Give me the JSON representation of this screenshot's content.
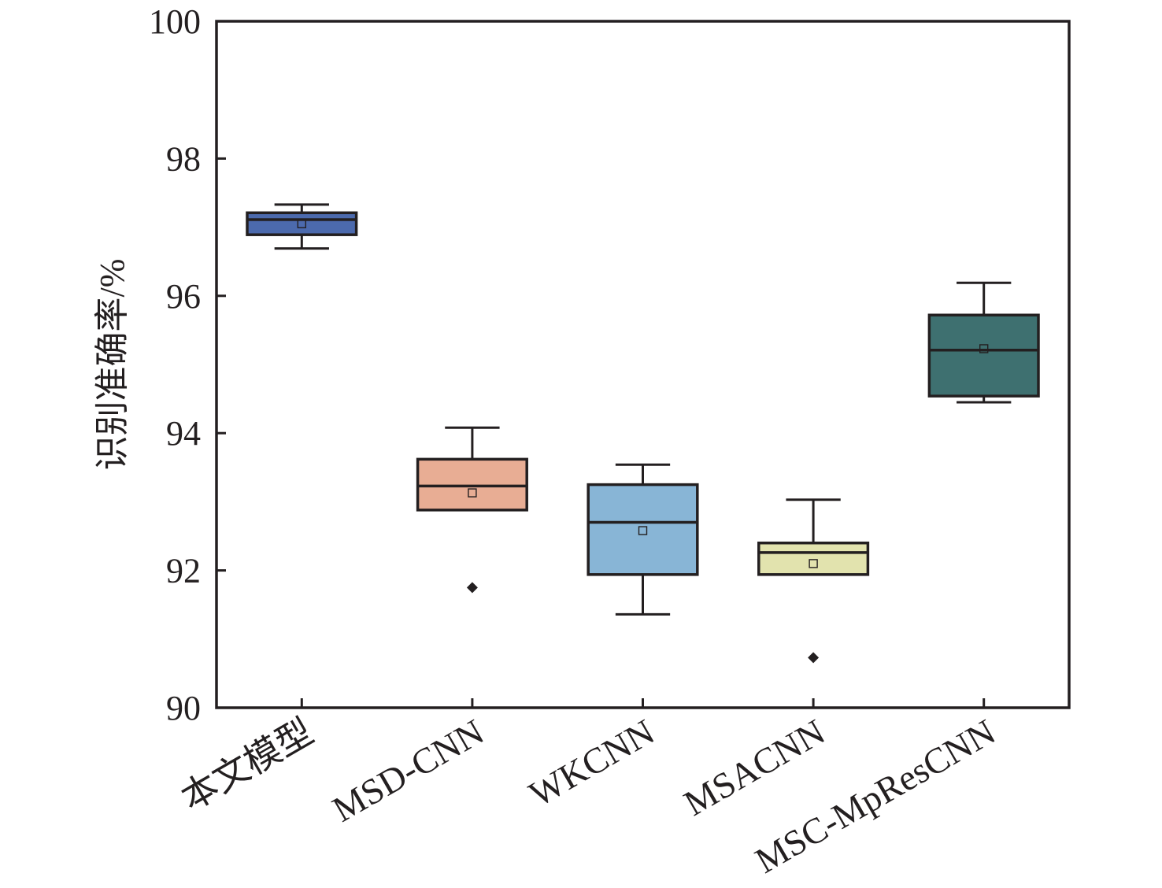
{
  "chart_data": {
    "type": "box",
    "title": "",
    "xlabel": "",
    "ylabel": "识别准确率/%",
    "ylim": [
      90,
      100
    ],
    "yticks": [
      90,
      92,
      94,
      96,
      98,
      100
    ],
    "ytick_labels": [
      "90",
      "92",
      "94",
      "96",
      "98",
      "100"
    ],
    "grid": false,
    "legend": "none",
    "categories": [
      "本文模型",
      "MSD-CNN",
      "WKCNN",
      "MSACNN",
      "MSC-MpResCNN"
    ],
    "series": [
      {
        "name": "本文模型",
        "color": "#4c6aad",
        "whisker_low": 96.69,
        "q1": 96.89,
        "median": 97.11,
        "q3": 97.21,
        "whisker_high": 97.33,
        "mean": 97.05,
        "outliers": []
      },
      {
        "name": "MSD-CNN",
        "color": "#e8ad94",
        "whisker_low": 92.88,
        "q1": 92.88,
        "median": 93.23,
        "q3": 93.62,
        "whisker_high": 94.08,
        "mean": 93.13,
        "outliers": [
          91.75
        ]
      },
      {
        "name": "WKCNN",
        "color": "#88b5d6",
        "whisker_low": 91.36,
        "q1": 91.94,
        "median": 92.7,
        "q3": 93.25,
        "whisker_high": 93.54,
        "mean": 92.58,
        "outliers": []
      },
      {
        "name": "MSACNN",
        "color": "#e2e3ae",
        "whisker_low": 91.94,
        "q1": 91.94,
        "median": 92.26,
        "q3": 92.4,
        "whisker_high": 93.03,
        "mean": 92.1,
        "outliers": [
          90.73
        ]
      },
      {
        "name": "MSC-MpResCNN",
        "color": "#3e7070",
        "whisker_low": 94.45,
        "q1": 94.54,
        "median": 95.21,
        "q3": 95.72,
        "whisker_high": 96.19,
        "mean": 95.23,
        "outliers": []
      }
    ],
    "line_color": "#231f20"
  }
}
